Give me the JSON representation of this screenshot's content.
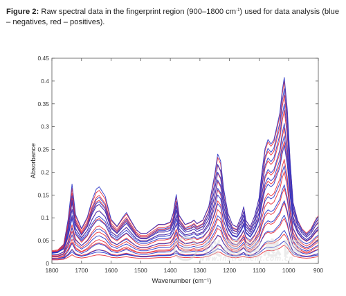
{
  "caption": {
    "label": "Figure 2:",
    "text_before_sup": " Raw spectral data in the fingerprint region (900–1800 cm",
    "sup": "-1",
    "text_after_sup": ") used for data analysis (blue – negatives, red – positives)."
  },
  "watermark": {
    "title": "仪器信息网",
    "url": "www.instrument.com.cn"
  },
  "chart_data": {
    "type": "line",
    "title": "",
    "xlabel": "Wavenumber (cm⁻¹)",
    "ylabel": "Absorbance",
    "xlim": [
      1800,
      900
    ],
    "ylim": [
      0,
      0.45
    ],
    "x_reversed": true,
    "xticks": [
      1800,
      1700,
      1600,
      1500,
      1400,
      1300,
      1200,
      1100,
      1000,
      900
    ],
    "yticks": [
      0,
      0.05,
      0.1,
      0.15,
      0.2,
      0.25,
      0.3,
      0.35,
      0.4,
      0.45
    ],
    "ytick_labels": [
      "0",
      "0.05",
      "0.1",
      "0.15",
      "0.2",
      "0.25",
      "0.3",
      "0.35",
      "0.4",
      "0.45"
    ],
    "grid": false,
    "legend": "none",
    "colors": {
      "negatives": "#2b35c8",
      "positives": "#e8303a"
    },
    "groups": [
      {
        "label": "negatives",
        "color": "#2b35c8",
        "scales": [
          1.0,
          0.9,
          0.82,
          0.74,
          0.66,
          0.58,
          0.5,
          0.4,
          0.32,
          0.24,
          0.16,
          0.1
        ]
      },
      {
        "label": "positives",
        "color": "#e8303a",
        "scales": [
          0.95,
          0.88,
          0.8,
          0.72,
          0.64,
          0.56,
          0.48,
          0.38,
          0.3,
          0.22,
          0.14,
          0.08
        ]
      }
    ],
    "reference_spectrum": {
      "x": [
        1800,
        1780,
        1760,
        1745,
        1732,
        1720,
        1700,
        1680,
        1665,
        1650,
        1640,
        1620,
        1600,
        1580,
        1560,
        1548,
        1535,
        1515,
        1500,
        1480,
        1460,
        1440,
        1420,
        1400,
        1390,
        1380,
        1370,
        1350,
        1330,
        1320,
        1310,
        1290,
        1270,
        1250,
        1240,
        1230,
        1220,
        1205,
        1190,
        1175,
        1160,
        1152,
        1145,
        1130,
        1115,
        1100,
        1090,
        1080,
        1070,
        1060,
        1050,
        1040,
        1030,
        1022,
        1015,
        1005,
        995,
        985,
        970,
        955,
        940,
        925,
        910,
        900
      ],
      "y": [
        0.02,
        0.022,
        0.035,
        0.09,
        0.165,
        0.1,
        0.07,
        0.095,
        0.13,
        0.155,
        0.16,
        0.14,
        0.09,
        0.075,
        0.095,
        0.105,
        0.09,
        0.068,
        0.06,
        0.06,
        0.07,
        0.08,
        0.08,
        0.085,
        0.105,
        0.145,
        0.1,
        0.08,
        0.085,
        0.09,
        0.082,
        0.09,
        0.12,
        0.19,
        0.235,
        0.22,
        0.16,
        0.105,
        0.08,
        0.075,
        0.1,
        0.12,
        0.09,
        0.075,
        0.1,
        0.14,
        0.2,
        0.25,
        0.27,
        0.26,
        0.27,
        0.3,
        0.33,
        0.38,
        0.41,
        0.34,
        0.22,
        0.13,
        0.09,
        0.07,
        0.06,
        0.07,
        0.09,
        0.1
      ]
    }
  }
}
